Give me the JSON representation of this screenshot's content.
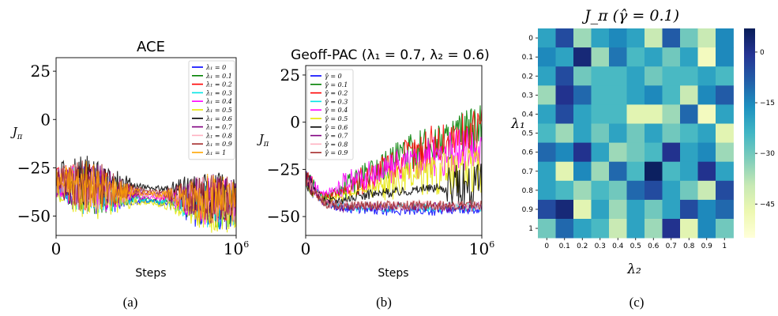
{
  "chart_data": [
    {
      "type": "line",
      "caption": "(a)",
      "title": "ACE",
      "xlabel": "Steps",
      "ylabel": "J_π",
      "xlim": [
        0,
        1000000
      ],
      "ylim": [
        -60,
        32
      ],
      "xticks": [
        {
          "value": 0,
          "label": "0"
        },
        {
          "value": 1000000,
          "label": "10^6"
        }
      ],
      "yticks": [
        {
          "value": 25,
          "label": "25"
        },
        {
          "value": 0,
          "label": "0"
        },
        {
          "value": -25,
          "label": "−25"
        },
        {
          "value": -50,
          "label": "−50"
        }
      ],
      "legend": "right",
      "legend_var": "λ₁",
      "series": [
        {
          "name": "0",
          "color": "#0000ff",
          "values": [
            -33,
            -36,
            -38,
            -40,
            -41,
            -42,
            -43,
            -44,
            -45,
            -45,
            -46
          ]
        },
        {
          "name": "0.1",
          "color": "#008000",
          "values": [
            -33,
            -35,
            -37,
            -38,
            -40,
            -41,
            -42,
            -42,
            -43,
            -44,
            -44
          ]
        },
        {
          "name": "0.2",
          "color": "#ff0000",
          "values": [
            -32,
            -34,
            -35,
            -37,
            -38,
            -39,
            -40,
            -41,
            -42,
            -42,
            -43
          ]
        },
        {
          "name": "0.3",
          "color": "#00e5e5",
          "values": [
            -34,
            -36,
            -38,
            -39,
            -40,
            -42,
            -43,
            -43,
            -44,
            -45,
            -45
          ]
        },
        {
          "name": "0.4",
          "color": "#ff00ff",
          "values": [
            -33,
            -35,
            -36,
            -38,
            -39,
            -40,
            -41,
            -42,
            -42,
            -43,
            -44
          ]
        },
        {
          "name": "0.5",
          "color": "#e6e600",
          "values": [
            -34,
            -37,
            -39,
            -41,
            -42,
            -43,
            -44,
            -45,
            -46,
            -47,
            -47
          ]
        },
        {
          "name": "0.6",
          "color": "#000000",
          "values": [
            -30,
            -31,
            -32,
            -33,
            -34,
            -35,
            -36,
            -37,
            -38,
            -39,
            -40
          ]
        },
        {
          "name": "0.7",
          "color": "#800080",
          "values": [
            -32,
            -34,
            -35,
            -36,
            -37,
            -38,
            -39,
            -40,
            -41,
            -41,
            -42
          ]
        },
        {
          "name": "0.8",
          "color": "#ffb0c0",
          "values": [
            -33,
            -34,
            -36,
            -37,
            -38,
            -39,
            -40,
            -40,
            -41,
            -42,
            -42
          ]
        },
        {
          "name": "0.9",
          "color": "#a52a2a",
          "values": [
            -31,
            -33,
            -34,
            -35,
            -36,
            -37,
            -38,
            -39,
            -39,
            -40,
            -41
          ]
        },
        {
          "name": "1",
          "color": "#ffa500",
          "values": [
            -32,
            -33,
            -35,
            -36,
            -37,
            -38,
            -39,
            -40,
            -40,
            -41,
            -42
          ]
        }
      ]
    },
    {
      "type": "line",
      "caption": "(b)",
      "title": "Geoff-PAC (λ₁ = 0.7, λ₂ = 0.6)",
      "xlabel": "Steps",
      "ylabel": "J_π",
      "xlim": [
        0,
        1000000
      ],
      "ylim": [
        -60,
        30
      ],
      "xticks": [
        {
          "value": 0,
          "label": "0"
        },
        {
          "value": 1000000,
          "label": "10^6"
        }
      ],
      "yticks": [
        {
          "value": 25,
          "label": "25"
        },
        {
          "value": 0,
          "label": "0"
        },
        {
          "value": -25,
          "label": "−25"
        },
        {
          "value": -50,
          "label": "−50"
        }
      ],
      "legend": "left",
      "legend_var": "γ̂",
      "series": [
        {
          "name": "0",
          "color": "#0000ff",
          "values": [
            -30,
            -42,
            -45,
            -46,
            -47,
            -47,
            -47,
            -47,
            -47,
            -46,
            -46
          ]
        },
        {
          "name": "0.1",
          "color": "#008000",
          "values": [
            -30,
            -40,
            -36,
            -30,
            -25,
            -20,
            -16,
            -12,
            -9,
            -6,
            -3
          ]
        },
        {
          "name": "0.2",
          "color": "#ff0000",
          "values": [
            -30,
            -40,
            -37,
            -32,
            -27,
            -22,
            -17,
            -13,
            -10,
            -7,
            -4
          ]
        },
        {
          "name": "0.3",
          "color": "#00e5e5",
          "values": [
            -30,
            -42,
            -44,
            -45,
            -45,
            -45,
            -45,
            -45,
            -45,
            -45,
            -45
          ]
        },
        {
          "name": "0.4",
          "color": "#ff00ff",
          "values": [
            -30,
            -38,
            -34,
            -30,
            -27,
            -24,
            -21,
            -19,
            -17,
            -15,
            -14
          ]
        },
        {
          "name": "0.5",
          "color": "#e6e600",
          "values": [
            -30,
            -42,
            -40,
            -37,
            -34,
            -32,
            -30,
            -28,
            -27,
            -26,
            -25
          ]
        },
        {
          "name": "0.6",
          "color": "#000000",
          "values": [
            -30,
            -42,
            -41,
            -39,
            -38,
            -37,
            -36,
            -35,
            -35,
            -34,
            -34
          ]
        },
        {
          "name": "0.7",
          "color": "#800080",
          "values": [
            -30,
            -43,
            -45,
            -45,
            -45,
            -45,
            -45,
            -45,
            -45,
            -45,
            -45
          ]
        },
        {
          "name": "0.8",
          "color": "#ffb0c0",
          "values": [
            -30,
            -43,
            -44,
            -44,
            -44,
            -44,
            -44,
            -44,
            -44,
            -44,
            -44
          ]
        },
        {
          "name": "0.9",
          "color": "#a52a2a",
          "values": [
            -30,
            -43,
            -44,
            -44,
            -44,
            -44,
            -44,
            -44,
            -44,
            -44,
            -44
          ]
        }
      ]
    },
    {
      "type": "heatmap",
      "caption": "(c)",
      "title": "J_π (γ̂ = 0.1)",
      "xlabel": "λ₂",
      "ylabel": "λ₁",
      "x": [
        "0",
        "0.1",
        "0.2",
        "0.3",
        "0.4",
        "0.5",
        "0.6",
        "0.7",
        "0.8",
        "0.9",
        "1"
      ],
      "y": [
        "0",
        "0.1",
        "0.2",
        "0.3",
        "0.4",
        "0.5",
        "0.6",
        "0.7",
        "0.8",
        "0.9",
        "1"
      ],
      "colorbar": {
        "range": [
          -55,
          7
        ],
        "ticks": [
          0,
          -15,
          -30,
          -45
        ],
        "labels": [
          "0",
          "−15",
          "−30",
          "−45"
        ],
        "colors": [
          "#ffffd9",
          "#edf8b1",
          "#c7e9b4",
          "#7fcdbb",
          "#41b6c4",
          "#1d91c0",
          "#225ea8",
          "#253494",
          "#081d58"
        ]
      },
      "values": [
        [
          -20,
          -5,
          -35,
          -20,
          -15,
          -20,
          -40,
          -8,
          -30,
          -40,
          -15
        ],
        [
          -15,
          -20,
          3,
          -35,
          -12,
          -25,
          -20,
          -30,
          -20,
          -50,
          -15
        ],
        [
          -20,
          -5,
          -30,
          -25,
          -25,
          -20,
          -30,
          -25,
          -25,
          -20,
          -25
        ],
        [
          -35,
          0,
          -10,
          -25,
          -25,
          -20,
          -15,
          -25,
          -40,
          -15,
          -8
        ],
        [
          -20,
          -5,
          -20,
          -25,
          -25,
          -45,
          -45,
          -35,
          -10,
          -50,
          -20
        ],
        [
          -25,
          -35,
          -20,
          -30,
          -20,
          -30,
          -20,
          -30,
          -25,
          -20,
          -45
        ],
        [
          -10,
          -15,
          0,
          -20,
          -35,
          -30,
          -25,
          0,
          -20,
          -15,
          -35
        ],
        [
          -20,
          -45,
          -15,
          -35,
          -10,
          -25,
          6,
          -25,
          -20,
          0,
          -20
        ],
        [
          -20,
          -25,
          -35,
          -25,
          -30,
          -10,
          -5,
          -20,
          -30,
          -40,
          -5
        ],
        [
          -5,
          3,
          -45,
          -20,
          -35,
          -20,
          -30,
          -20,
          -5,
          -15,
          -10
        ],
        [
          -30,
          -10,
          -20,
          -25,
          -40,
          -20,
          -35,
          0,
          -45,
          -15,
          -30
        ]
      ]
    }
  ]
}
